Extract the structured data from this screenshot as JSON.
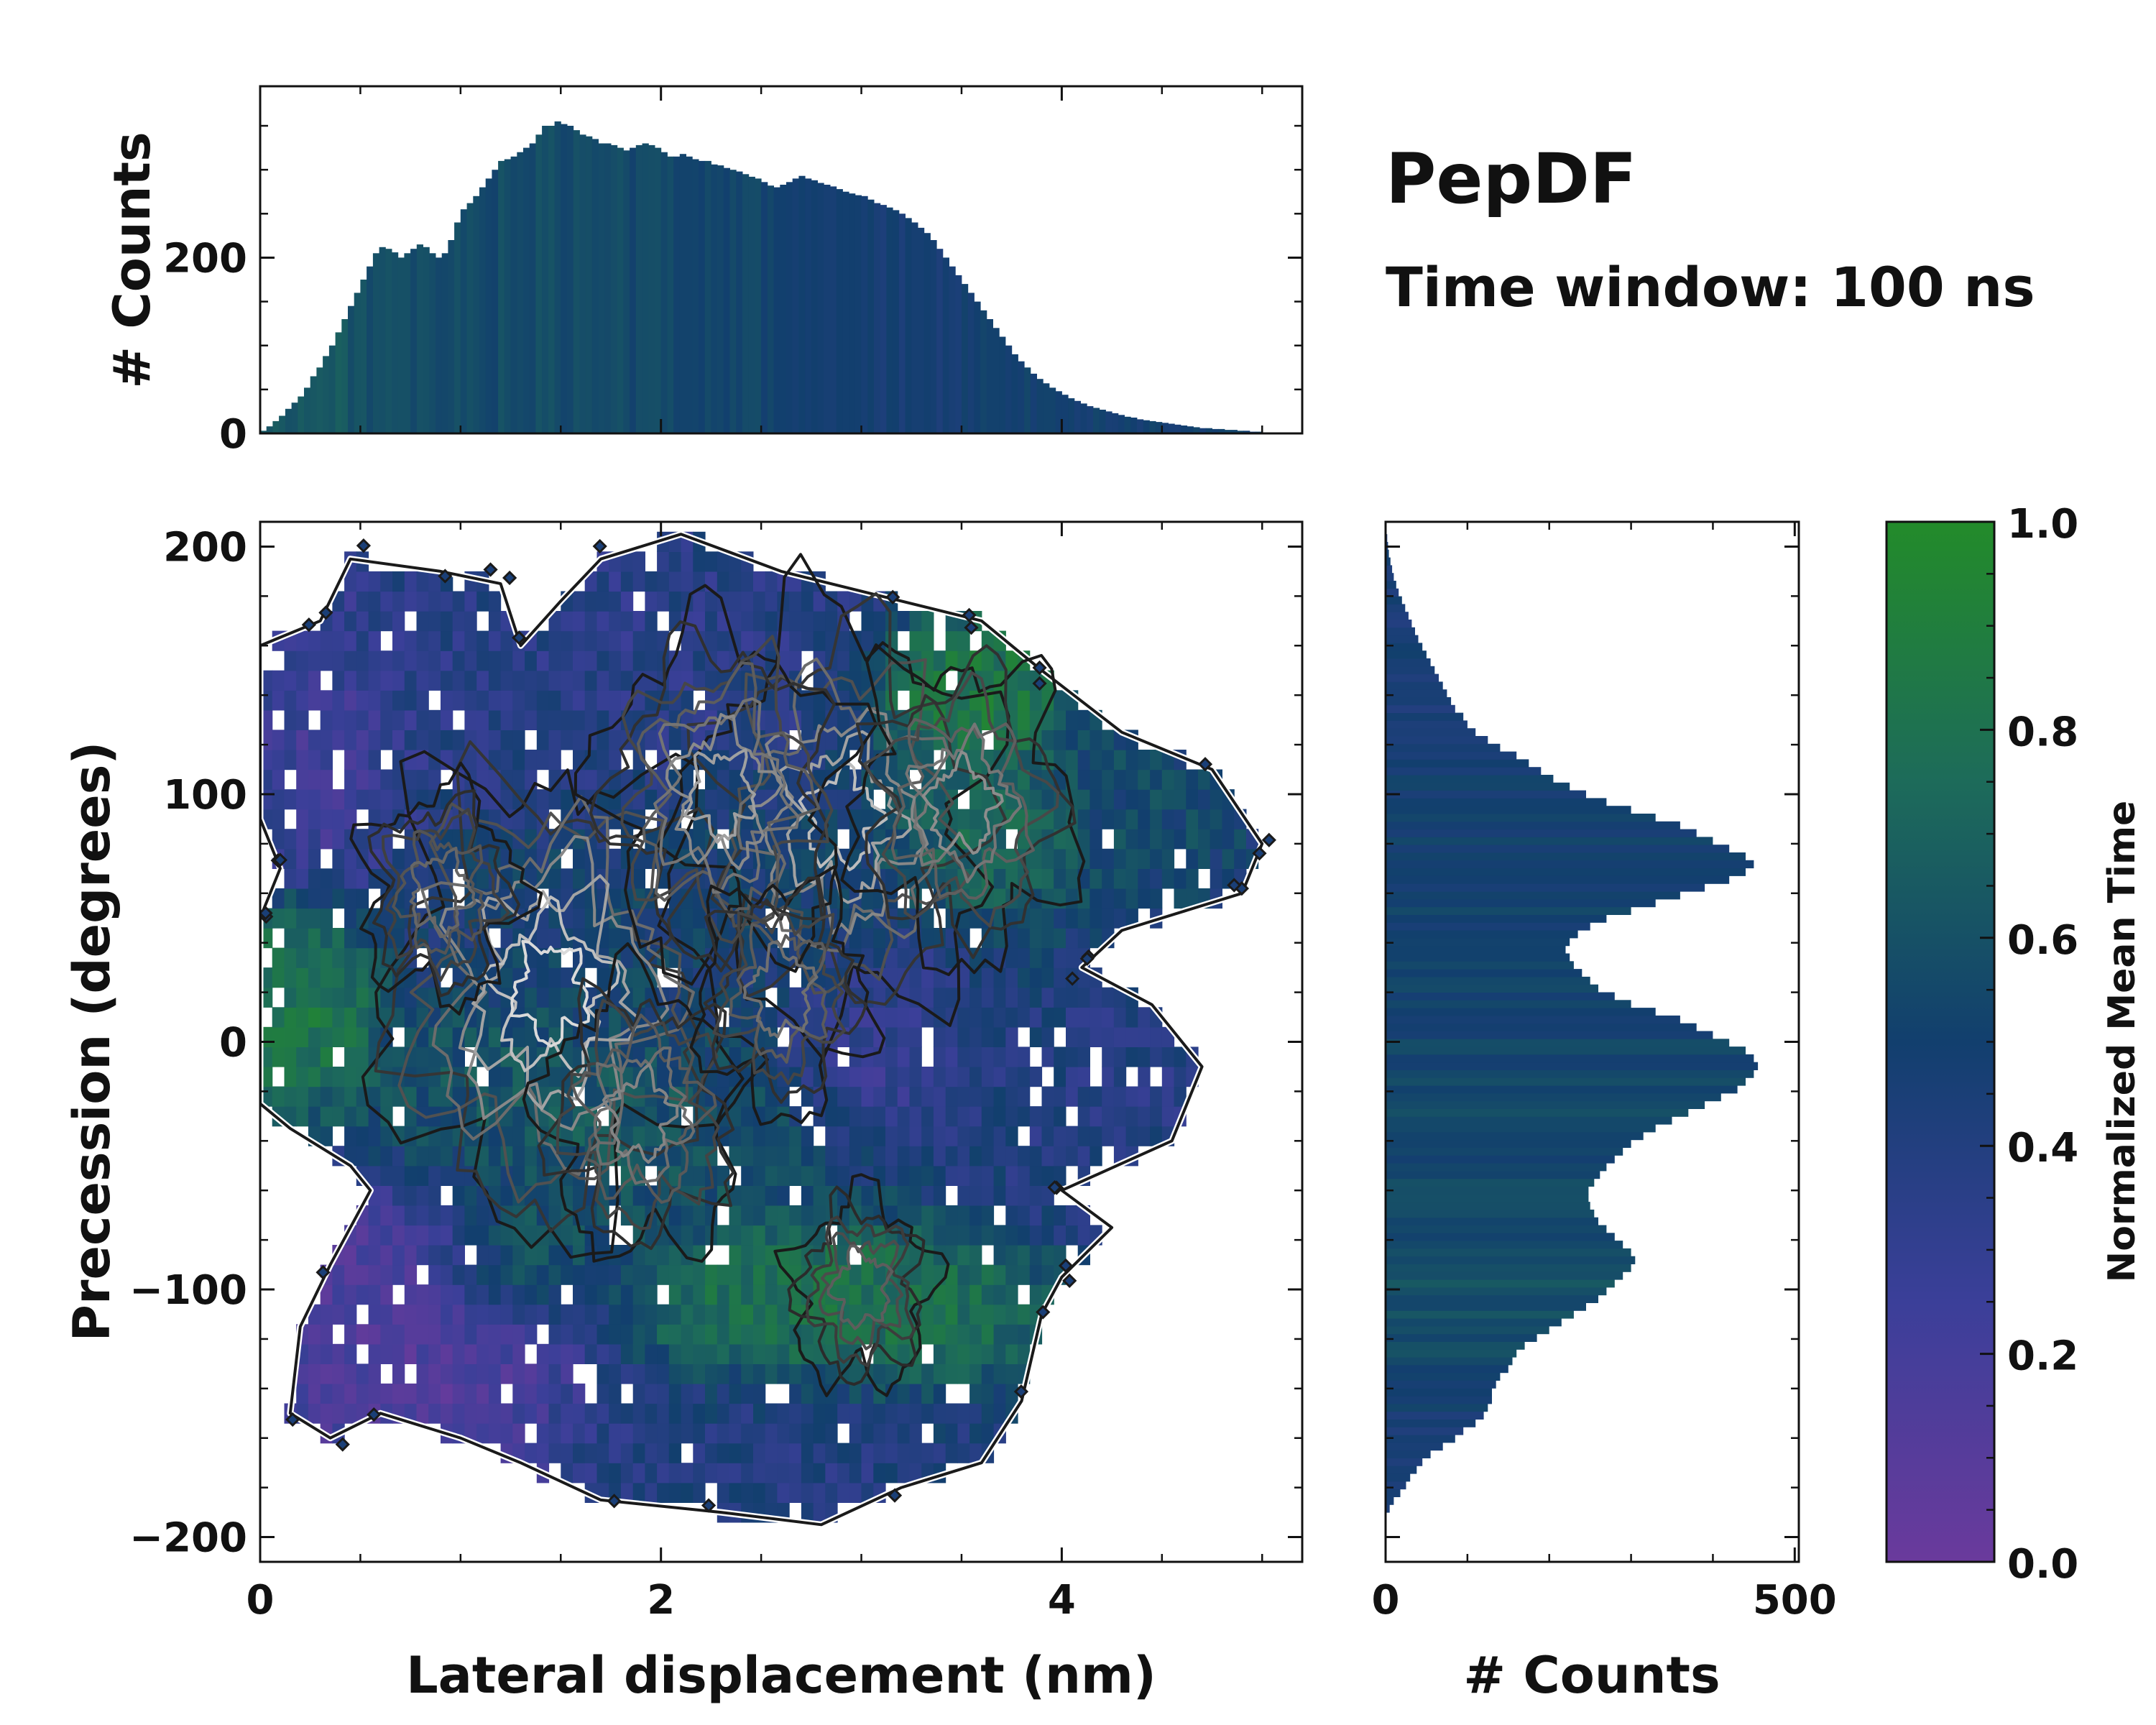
{
  "annotations": {
    "title": "PepDF",
    "subtitle": "Time window: 100 ns"
  },
  "colors": {
    "purple": "#6a3a9c",
    "blue": "#2b3d8c",
    "navy": "#123f6e",
    "teal": "#1d6b5a",
    "green": "#238b2a",
    "contour_dark": "#1a1a1a",
    "contour_light": "#d8d8d8"
  },
  "chart_data": [
    {
      "id": "main-2d-histogram",
      "type": "heatmap",
      "title": "",
      "xlabel": "Lateral displacement (nm)",
      "ylabel": "Precession (degrees)",
      "xlim": [
        0,
        5.2
      ],
      "ylim": [
        -210,
        210
      ],
      "xticks": [
        0,
        2,
        4
      ],
      "yticks": [
        -200,
        -100,
        0,
        100,
        200
      ],
      "xtick_labels": [
        "0",
        "2",
        "4"
      ],
      "ytick_labels": [
        "−200",
        "−100",
        "0",
        "100",
        "200"
      ],
      "bin_width_x": 0.06,
      "bin_width_y": 8,
      "support_outline": [
        [
          0.0,
          160
        ],
        [
          0.3,
          170
        ],
        [
          0.45,
          195
        ],
        [
          0.9,
          190
        ],
        [
          1.2,
          185
        ],
        [
          1.3,
          160
        ],
        [
          1.5,
          178
        ],
        [
          1.7,
          195
        ],
        [
          2.1,
          205
        ],
        [
          2.6,
          190
        ],
        [
          3.1,
          180
        ],
        [
          3.6,
          170
        ],
        [
          3.9,
          150
        ],
        [
          4.3,
          125
        ],
        [
          4.75,
          110
        ],
        [
          5.0,
          80
        ],
        [
          4.9,
          60
        ],
        [
          4.3,
          45
        ],
        [
          4.1,
          30
        ],
        [
          4.45,
          15
        ],
        [
          4.7,
          -10
        ],
        [
          4.55,
          -40
        ],
        [
          4.0,
          -60
        ],
        [
          4.25,
          -75
        ],
        [
          4.0,
          -95
        ],
        [
          3.9,
          -110
        ],
        [
          3.8,
          -145
        ],
        [
          3.6,
          -170
        ],
        [
          3.2,
          -180
        ],
        [
          2.8,
          -195
        ],
        [
          2.3,
          -190
        ],
        [
          1.7,
          -185
        ],
        [
          1.3,
          -170
        ],
        [
          1.0,
          -160
        ],
        [
          0.6,
          -150
        ],
        [
          0.35,
          -160
        ],
        [
          0.15,
          -150
        ],
        [
          0.2,
          -115
        ],
        [
          0.35,
          -90
        ],
        [
          0.55,
          -60
        ],
        [
          0.45,
          -50
        ],
        [
          0.15,
          -35
        ],
        [
          0.0,
          -25
        ],
        [
          0.0,
          50
        ],
        [
          0.1,
          70
        ],
        [
          0.0,
          90
        ]
      ],
      "color_regions": [
        {
          "label": "purple",
          "color_value": 0.12,
          "x": 0.85,
          "y": -120,
          "rx": 0.75,
          "ry": 55
        },
        {
          "label": "purple",
          "color_value": 0.18,
          "x": 3.1,
          "y": 10,
          "rx": 0.45,
          "ry": 35
        },
        {
          "label": "purple",
          "color_value": 0.22,
          "x": 0.3,
          "y": 120,
          "rx": 0.35,
          "ry": 50
        },
        {
          "label": "blue",
          "color_value": 0.35,
          "x": 1.6,
          "y": 150,
          "rx": 1.2,
          "ry": 45
        },
        {
          "label": "blue",
          "color_value": 0.38,
          "x": 4.3,
          "y": -20,
          "rx": 0.5,
          "ry": 45
        },
        {
          "label": "blue",
          "color_value": 0.4,
          "x": 2.4,
          "y": -160,
          "rx": 0.9,
          "ry": 30
        },
        {
          "label": "navy",
          "color_value": 0.5,
          "x": 2.6,
          "y": 40,
          "rx": 1.3,
          "ry": 60
        },
        {
          "label": "navy",
          "color_value": 0.55,
          "x": 4.4,
          "y": 90,
          "rx": 0.4,
          "ry": 30
        },
        {
          "label": "teal",
          "color_value": 0.65,
          "x": 1.6,
          "y": -30,
          "rx": 0.9,
          "ry": 40
        },
        {
          "label": "green",
          "color_value": 0.85,
          "x": 0.2,
          "y": 15,
          "rx": 0.3,
          "ry": 35
        },
        {
          "label": "green",
          "color_value": 0.9,
          "x": 3.5,
          "y": 140,
          "rx": 0.4,
          "ry": 25
        },
        {
          "label": "green",
          "color_value": 0.8,
          "x": 3.6,
          "y": 80,
          "rx": 0.45,
          "ry": 30
        },
        {
          "label": "green",
          "color_value": 0.82,
          "x": 2.8,
          "y": -110,
          "rx": 0.9,
          "ry": 30
        },
        {
          "label": "green",
          "color_value": 0.75,
          "x": 1.3,
          "y": -90,
          "rx": 0.35,
          "ry": 25
        }
      ],
      "density_peaks": [
        {
          "x": 1.45,
          "y": 20,
          "strength": 1.0
        },
        {
          "x": 2.9,
          "y": 90,
          "strength": 0.85
        },
        {
          "x": 2.3,
          "y": 100,
          "strength": 0.7
        },
        {
          "x": 3.5,
          "y": 95,
          "strength": 0.6
        },
        {
          "x": 1.9,
          "y": -30,
          "strength": 0.55
        },
        {
          "x": 2.6,
          "y": 20,
          "strength": 0.45
        },
        {
          "x": 0.9,
          "y": 60,
          "strength": 0.4
        },
        {
          "x": 3.0,
          "y": -100,
          "strength": 0.35
        }
      ]
    },
    {
      "id": "top-marginal-histogram",
      "type": "bar",
      "xlabel": "",
      "ylabel": "# Counts",
      "xlim": [
        0,
        5.2
      ],
      "ylim": [
        0,
        395
      ],
      "yticks": [
        0,
        200
      ],
      "ytick_labels": [
        "0",
        "200"
      ],
      "x_range": [
        0,
        5.0
      ],
      "values": [
        3,
        8,
        14,
        20,
        28,
        35,
        42,
        52,
        65,
        75,
        88,
        100,
        115,
        130,
        145,
        160,
        175,
        190,
        205,
        212,
        210,
        206,
        200,
        205,
        210,
        215,
        212,
        205,
        200,
        205,
        220,
        240,
        255,
        262,
        270,
        280,
        290,
        300,
        310,
        312,
        315,
        320,
        325,
        330,
        340,
        350,
        350,
        355,
        352,
        350,
        345,
        340,
        338,
        335,
        330,
        330,
        328,
        325,
        322,
        325,
        328,
        330,
        328,
        325,
        320,
        315,
        315,
        318,
        315,
        312,
        310,
        310,
        306,
        305,
        302,
        300,
        298,
        295,
        292,
        290,
        286,
        282,
        280,
        283,
        286,
        290,
        293,
        290,
        288,
        285,
        283,
        281,
        278,
        275,
        273,
        271,
        270,
        266,
        262,
        260,
        257,
        254,
        250,
        245,
        240,
        234,
        228,
        220,
        210,
        200,
        190,
        180,
        170,
        160,
        150,
        140,
        130,
        120,
        110,
        100,
        90,
        82,
        75,
        68,
        62,
        57,
        52,
        48,
        44,
        40,
        37,
        34,
        31,
        29,
        27,
        25,
        23,
        21,
        19,
        18,
        16,
        15,
        14,
        13,
        12,
        11,
        10,
        9,
        8,
        7,
        6,
        6,
        5,
        5,
        4,
        4,
        3,
        3,
        2,
        2
      ]
    },
    {
      "id": "right-marginal-histogram",
      "type": "bar",
      "orientation": "horizontal",
      "xlabel": "# Counts",
      "ylabel": "",
      "xlim": [
        0,
        505
      ],
      "ylim": [
        -210,
        210
      ],
      "xticks": [
        0,
        500
      ],
      "xtick_labels": [
        "0",
        "500"
      ],
      "y_range": [
        -190,
        205
      ],
      "values": [
        5,
        10,
        18,
        25,
        30,
        38,
        45,
        55,
        70,
        85,
        95,
        110,
        120,
        125,
        130,
        130,
        135,
        140,
        150,
        155,
        160,
        170,
        185,
        200,
        215,
        230,
        245,
        260,
        270,
        280,
        290,
        300,
        305,
        300,
        290,
        280,
        270,
        260,
        255,
        250,
        248,
        248,
        255,
        262,
        270,
        280,
        290,
        300,
        315,
        330,
        350,
        370,
        390,
        410,
        430,
        440,
        450,
        455,
        450,
        440,
        420,
        400,
        380,
        360,
        330,
        300,
        280,
        260,
        250,
        240,
        230,
        225,
        220,
        225,
        235,
        250,
        270,
        300,
        330,
        360,
        390,
        420,
        440,
        450,
        440,
        420,
        400,
        380,
        360,
        330,
        300,
        270,
        245,
        225,
        205,
        190,
        175,
        160,
        140,
        125,
        110,
        100,
        95,
        85,
        80,
        75,
        70,
        65,
        60,
        55,
        50,
        45,
        40,
        36,
        32,
        28,
        24,
        20,
        16,
        13,
        10,
        8,
        6,
        4,
        3,
        2
      ]
    },
    {
      "id": "colorbar",
      "type": "heatmap",
      "label": "Normalized Mean Time",
      "range": [
        0.0,
        1.0
      ],
      "ticks": [
        0.0,
        0.2,
        0.4,
        0.6,
        0.8,
        1.0
      ],
      "tick_labels": [
        "0.0",
        "0.2",
        "0.4",
        "0.6",
        "0.8",
        "1.0"
      ],
      "colors": [
        "#6a3a9c",
        "#3b3f99",
        "#123f6e",
        "#1d6b5a",
        "#238b2a"
      ]
    }
  ]
}
